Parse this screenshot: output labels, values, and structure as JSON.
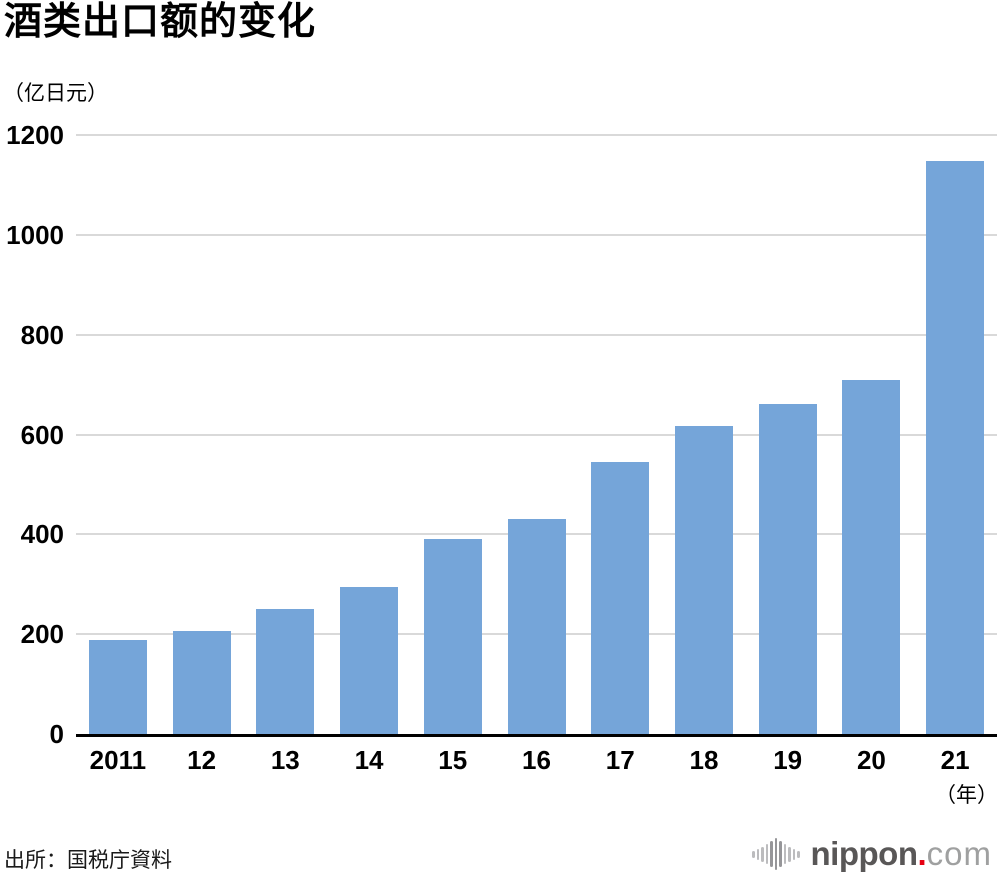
{
  "title": "酒类出口额的变化",
  "unit_label": "（亿日元）",
  "x_axis_unit": "（年）",
  "source": "出所：国税庁資料",
  "logo": {
    "brand": "nippon",
    "dot": ".",
    "tld": "com",
    "icon": "soundwave-bars-icon",
    "brand_color": "#595757",
    "dot_color": "#e60012",
    "tld_color": "#9fa0a0"
  },
  "colors": {
    "bar": "#75a5d9",
    "gridline": "#d9d9d9",
    "axis_line": "#000000",
    "text": "#000000"
  },
  "chart_data": {
    "type": "bar",
    "title": "酒类出口额的变化",
    "ylabel": "（亿日元）",
    "xlabel": "（年）",
    "categories": [
      "2011",
      "12",
      "13",
      "14",
      "15",
      "16",
      "17",
      "18",
      "19",
      "20",
      "21"
    ],
    "values": [
      189,
      207,
      251,
      294,
      390,
      430,
      545,
      618,
      661,
      710,
      1147
    ],
    "ylim": [
      0,
      1200
    ],
    "y_ticks": [
      0,
      200,
      400,
      600,
      800,
      1000,
      1200
    ],
    "grid": "horizontal",
    "legend": "none",
    "bar_color": "#75a5d9"
  }
}
